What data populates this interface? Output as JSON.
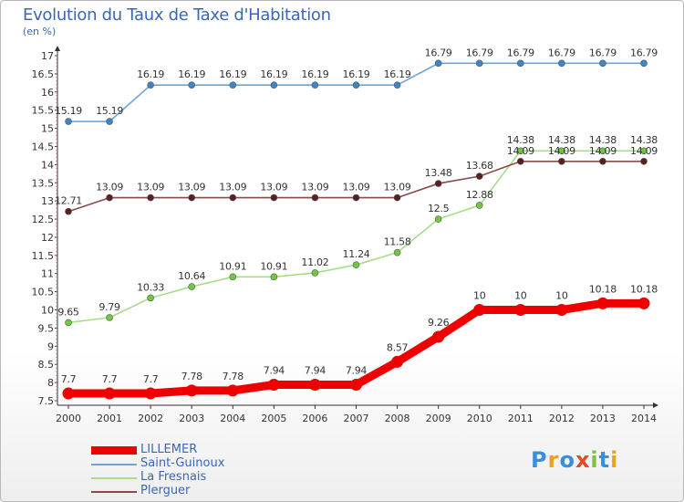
{
  "title": "Evolution du Taux de Taxe d'Habitation",
  "unit": "(en %)",
  "logo": {
    "text": "Proxiti",
    "colors": [
      "#3a8fd9",
      "#e8a21c",
      "#3a8fd9",
      "#e24a2a",
      "#7cc142",
      "#3a8fd9",
      "#e8a21c"
    ]
  },
  "chart_data": {
    "type": "line",
    "title": "Evolution du Taux de Taxe d'Habitation",
    "ylabel": "(en %)",
    "xlabel": "",
    "x": [
      2000,
      2001,
      2002,
      2003,
      2004,
      2005,
      2006,
      2007,
      2008,
      2009,
      2010,
      2011,
      2012,
      2013,
      2014
    ],
    "ylim": [
      7.5,
      17
    ],
    "yticks": [
      "7.5",
      "8",
      "8.5",
      "9",
      "9.5",
      "10",
      "10.5",
      "11",
      "11.5",
      "12",
      "12.5",
      "13",
      "13.5",
      "14",
      "14.5",
      "15",
      "15.5",
      "16",
      "16.5",
      "17"
    ],
    "grid": false,
    "legend_position": "bottom-left",
    "series": [
      {
        "name": "Saint-Guinoux",
        "color": "#6fa5d6",
        "dot": "#3d85c6",
        "values": [
          15.19,
          15.19,
          16.19,
          16.19,
          16.19,
          16.19,
          16.19,
          16.19,
          16.19,
          16.79,
          16.79,
          16.79,
          16.79,
          16.79,
          16.79
        ],
        "labels": [
          "15.19",
          "15.19",
          "16.19",
          "16.19",
          "16.19",
          "16.19",
          "16.19",
          "16.19",
          "16.19",
          "16.79",
          "16.79",
          "16.79",
          "16.79",
          "16.79",
          "16.79"
        ]
      },
      {
        "name": "La Fresnais",
        "color": "#a6dd88",
        "dot": "#6fc840",
        "values": [
          9.65,
          9.79,
          10.33,
          10.64,
          10.91,
          10.91,
          11.02,
          11.24,
          11.58,
          12.5,
          12.88,
          14.38,
          14.38,
          14.38,
          14.38
        ],
        "labels": [
          "9.65",
          "9.79",
          "10.33",
          "10.64",
          "10.91",
          "10.91",
          "11.02",
          "11.24",
          "11.58",
          "12.5",
          "12.88",
          "14.38",
          "14.38",
          "14.38",
          "14.38"
        ]
      },
      {
        "name": "Plerguer",
        "color": "#8a4a4a",
        "dot": "#5a1f1f",
        "values": [
          12.71,
          13.09,
          13.09,
          13.09,
          13.09,
          13.09,
          13.09,
          13.09,
          13.09,
          13.48,
          13.68,
          14.09,
          14.09,
          14.09,
          14.09
        ],
        "labels": [
          "12.71",
          "13.09",
          "13.09",
          "13.09",
          "13.09",
          "13.09",
          "13.09",
          "13.09",
          "13.09",
          "13.48",
          "13.68",
          "14.09",
          "14.09",
          "14.09",
          "14.09"
        ]
      },
      {
        "name": "LILLEMER",
        "color": "#ee0000",
        "dot": "#ee0000",
        "values": [
          7.7,
          7.7,
          7.7,
          7.78,
          7.78,
          7.94,
          7.94,
          7.94,
          8.57,
          9.26,
          10,
          10,
          10,
          10.18,
          10.18
        ],
        "labels": [
          "7.7",
          "7.7",
          "7.7",
          "7.78",
          "7.78",
          "7.94",
          "7.94",
          "7.94",
          "8.57",
          "9.26",
          "10",
          "10",
          "10",
          "10.18",
          "10.18"
        ]
      }
    ],
    "legend": [
      "LILLEMER",
      "Saint-Guinoux",
      "La Fresnais",
      "Plerguer"
    ]
  }
}
